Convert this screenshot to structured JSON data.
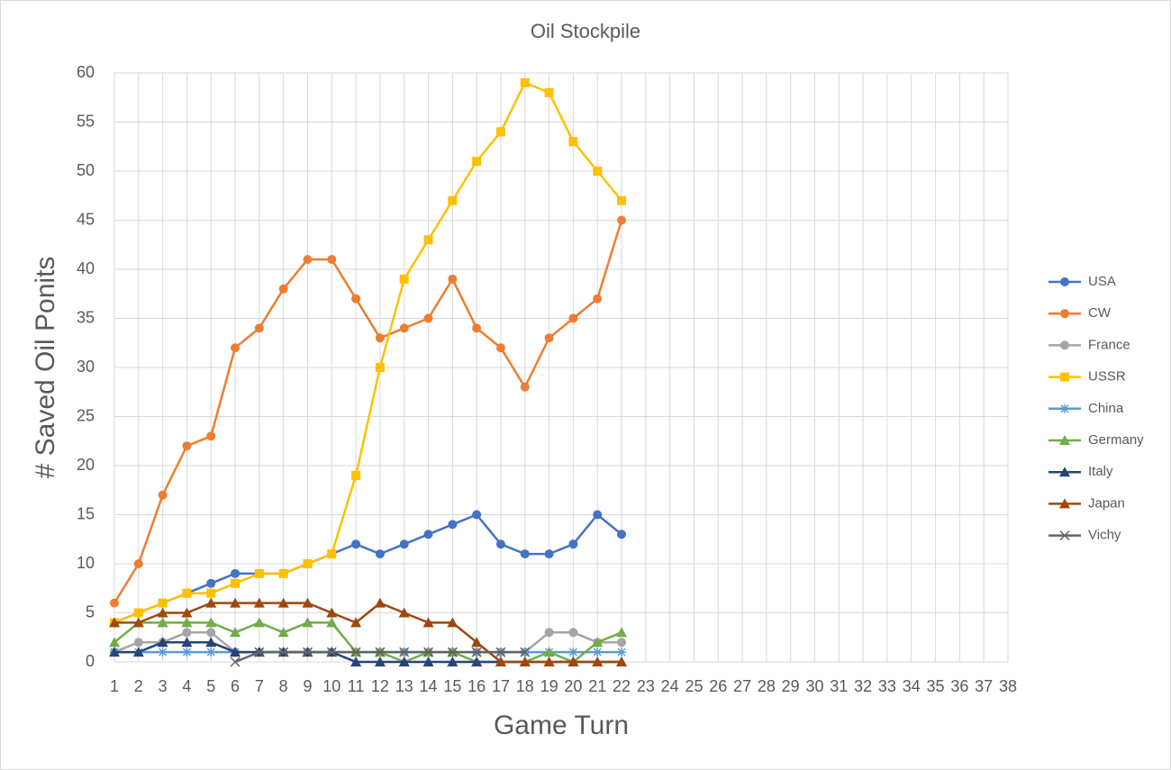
{
  "chart_data": {
    "type": "line",
    "title": "Oil Stockpile",
    "x_label": "Game Turn",
    "y_label": "# Saved Oil Ponits",
    "x": [
      1,
      2,
      3,
      4,
      5,
      6,
      7,
      8,
      9,
      10,
      11,
      12,
      13,
      14,
      15,
      16,
      17,
      18,
      19,
      20,
      21,
      22
    ],
    "xlim": [
      1,
      38
    ],
    "xticks": [
      1,
      2,
      3,
      4,
      5,
      6,
      7,
      8,
      9,
      10,
      11,
      12,
      13,
      14,
      15,
      16,
      17,
      18,
      19,
      20,
      21,
      22,
      23,
      24,
      25,
      26,
      27,
      28,
      29,
      30,
      31,
      32,
      33,
      34,
      35,
      36,
      37,
      38
    ],
    "ylim": [
      0,
      60
    ],
    "yticks": [
      0,
      5,
      10,
      15,
      20,
      25,
      30,
      35,
      40,
      45,
      50,
      55,
      60
    ],
    "grid": true,
    "legend": "right",
    "series": [
      {
        "name": "USA",
        "color": "#4472c4",
        "marker": "circle",
        "values": [
          4,
          5,
          6,
          7,
          8,
          9,
          9,
          9,
          10,
          11,
          12,
          11,
          12,
          13,
          14,
          15,
          12,
          11,
          11,
          12,
          15,
          13
        ]
      },
      {
        "name": "CW",
        "color": "#ed7d31",
        "marker": "circle",
        "values": [
          6,
          10,
          17,
          22,
          23,
          32,
          34,
          38,
          41,
          41,
          37,
          33,
          34,
          35,
          39,
          34,
          32,
          28,
          33,
          35,
          37,
          45
        ]
      },
      {
        "name": "France",
        "color": "#a5a5a5",
        "marker": "circle",
        "values": [
          1,
          2,
          2,
          3,
          3,
          1,
          1,
          1,
          1,
          1,
          1,
          1,
          1,
          1,
          1,
          1,
          1,
          1,
          3,
          3,
          2,
          2
        ]
      },
      {
        "name": "USSR",
        "color": "#ffc000",
        "marker": "square",
        "values": [
          4,
          5,
          6,
          7,
          7,
          8,
          9,
          9,
          10,
          11,
          19,
          30,
          39,
          43,
          47,
          51,
          54,
          59,
          58,
          53,
          50,
          47
        ]
      },
      {
        "name": "China",
        "color": "#5b9bd5",
        "marker": "star",
        "values": [
          1,
          1,
          1,
          1,
          1,
          1,
          1,
          1,
          1,
          1,
          1,
          1,
          1,
          1,
          1,
          1,
          1,
          1,
          1,
          1,
          1,
          1
        ]
      },
      {
        "name": "Germany",
        "color": "#70ad47",
        "marker": "triangle",
        "values": [
          2,
          4,
          4,
          4,
          4,
          3,
          4,
          3,
          4,
          4,
          1,
          1,
          0,
          1,
          1,
          0,
          0,
          0,
          1,
          0,
          2,
          3
        ]
      },
      {
        "name": "Italy",
        "color": "#264478",
        "marker": "triangle",
        "values": [
          1,
          1,
          2,
          2,
          2,
          1,
          1,
          1,
          1,
          1,
          0,
          0,
          0,
          0,
          0,
          0,
          0,
          0,
          0,
          0,
          0,
          0
        ]
      },
      {
        "name": "Japan",
        "color": "#9e480e",
        "marker": "triangle",
        "values": [
          4,
          4,
          5,
          5,
          6,
          6,
          6,
          6,
          6,
          5,
          4,
          6,
          5,
          4,
          4,
          2,
          0,
          0,
          0,
          0,
          0,
          0
        ]
      },
      {
        "name": "Vichy",
        "color": "#636363",
        "marker": "x",
        "values": [
          null,
          null,
          null,
          null,
          null,
          0,
          1,
          1,
          1,
          1,
          1,
          1,
          1,
          1,
          1,
          1,
          1,
          1,
          null,
          null,
          null,
          null
        ]
      }
    ]
  }
}
